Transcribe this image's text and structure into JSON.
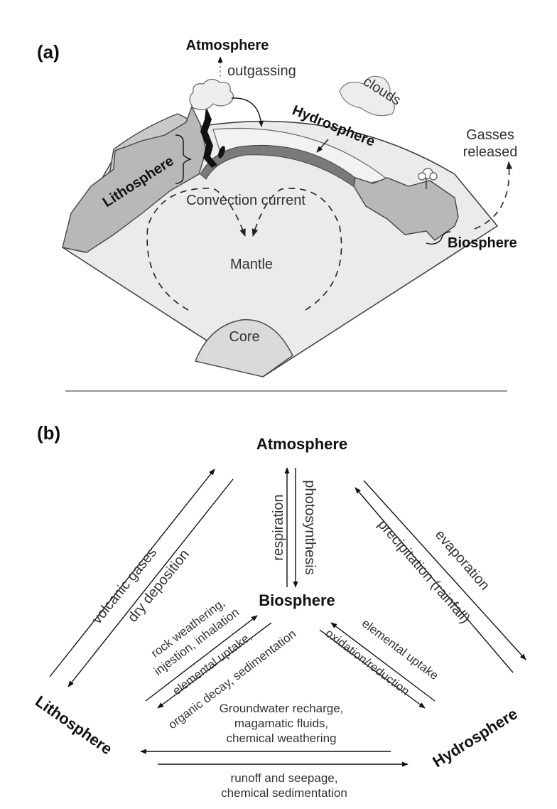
{
  "panel_a": {
    "label": "(a)",
    "atmosphere": "Atmosphere",
    "outgassing": "outgassing",
    "clouds": "clouds",
    "hydrosphere": "Hydrosphere",
    "gasses_line1": "Gasses",
    "gasses_line2": "released",
    "lithosphere": "Lithosphere",
    "convection": "Convection current",
    "mantle": "Mantle",
    "biosphere": "Biosphere",
    "core": "Core"
  },
  "panel_b": {
    "label": "(b)",
    "nodes": {
      "atmosphere": "Atmosphere",
      "biosphere": "Biosphere",
      "lithosphere": "Lithosphere",
      "hydrosphere": "Hydrosphere"
    },
    "flows": {
      "respiration": "respiration",
      "photosynthesis": "photosynthesis",
      "volcanic_gases": "volcanic gases",
      "dry_deposition": "dry deposition",
      "evaporation": "evaporation",
      "precipitation": "precipitation (rainfall)",
      "rock_weathering_1": "rock weathering,",
      "rock_weathering_2": "injestion, inhalation",
      "elemental_uptake_litho": "elemental uptake,",
      "organic_decay": "organic decay, sedimentation",
      "elemental_uptake_hydro": "elemental uptake",
      "oxidation_reduction": "oxidation/reduction",
      "groundwater_1": "Groundwater recharge,",
      "groundwater_2": "magamatic fluids,",
      "groundwater_3": "chemical weathering",
      "runoff_1": "runoff and seepage,",
      "runoff_2": "chemical sedimentation"
    }
  }
}
